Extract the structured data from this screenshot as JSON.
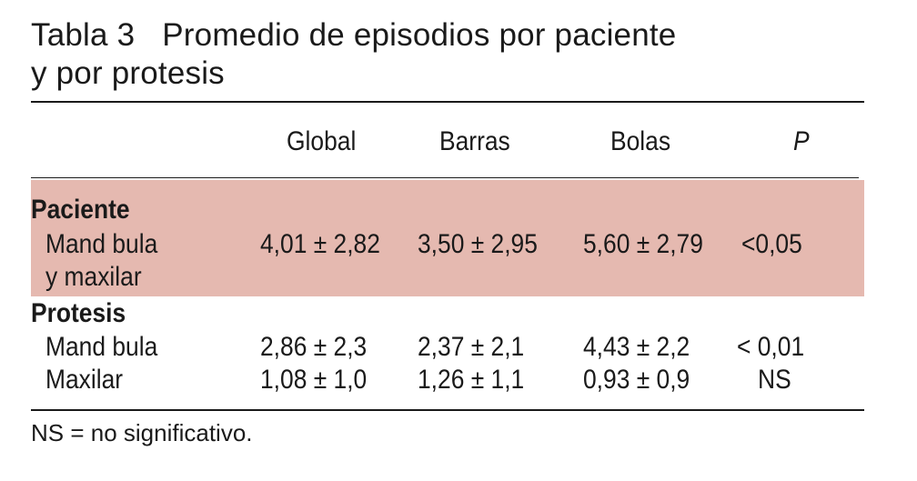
{
  "table": {
    "label": "Tabla 3",
    "title_line1": "Promedio de episodios por paciente",
    "title_line2": "y por protesis",
    "columns": [
      "Global",
      "Barras",
      "Bolas",
      "P"
    ],
    "highlight_color": "#e5b9b0",
    "groups": [
      {
        "heading": "Paciente",
        "rows": [
          {
            "label_line1": "Mand bula",
            "label_line2": "y maxilar",
            "values": [
              "4,01 ± 2,82",
              "3,50 ± 2,95",
              "5,60 ± 2,79",
              "<0,05"
            ]
          }
        ]
      },
      {
        "heading": "Protesis",
        "rows": [
          {
            "label_line1": "Mand bula",
            "values": [
              "2,86 ± 2,3",
              "2,37 ± 2,1",
              "4,43 ± 2,2",
              "< 0,01"
            ]
          },
          {
            "label_line1": "Maxilar",
            "values": [
              "1,08 ± 1,0",
              "1,26 ± 1,1",
              "0,93 ± 0,9",
              "NS"
            ]
          }
        ]
      }
    ],
    "footnote": "NS = no significativo."
  }
}
